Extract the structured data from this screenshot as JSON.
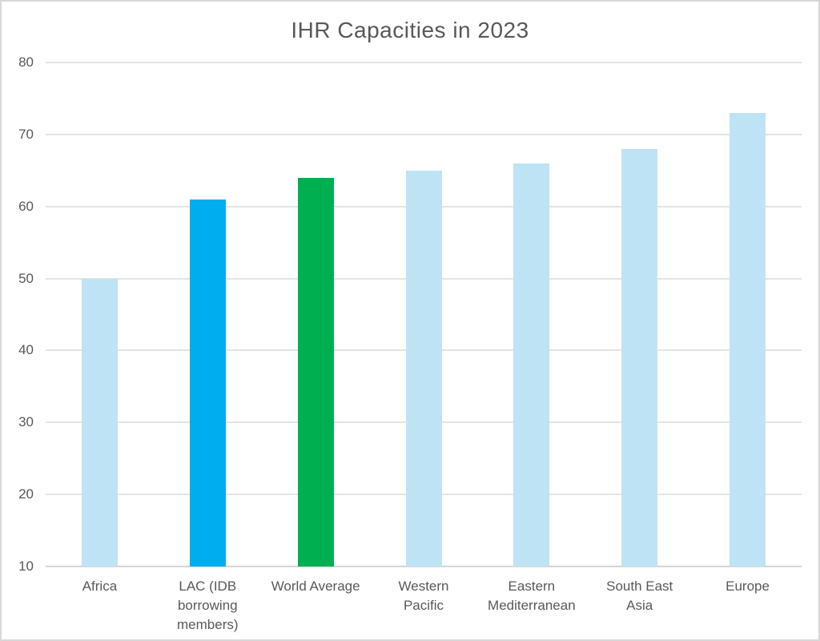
{
  "page": {
    "background": "#ffffff",
    "border_color": "#d8d8d8"
  },
  "chart_data": {
    "type": "bar",
    "title": "IHR Capacities in 2023",
    "categories": [
      "Africa",
      "LAC (IDB\nborrowing\nmembers)",
      "World Average",
      "Western\nPacific",
      "Eastern\nMediterranean",
      "South East\nAsia",
      "Europe"
    ],
    "values": [
      50,
      61,
      64,
      65,
      66,
      68,
      73
    ],
    "bar_colors": [
      "#BEE3F5",
      "#00AEEF",
      "#00B050",
      "#BEE3F5",
      "#BEE3F5",
      "#BEE3F5",
      "#BEE3F5"
    ],
    "xlabel": "",
    "ylabel": "",
    "ylim": [
      10,
      80
    ],
    "yticks": [
      10,
      20,
      30,
      40,
      50,
      60,
      70,
      80
    ],
    "grid": true,
    "legend": false,
    "title_color": "#595959",
    "axis_label_color": "#595959",
    "gridline_color": "#e4e4e4",
    "baseline_color": "#d5d5d5"
  }
}
